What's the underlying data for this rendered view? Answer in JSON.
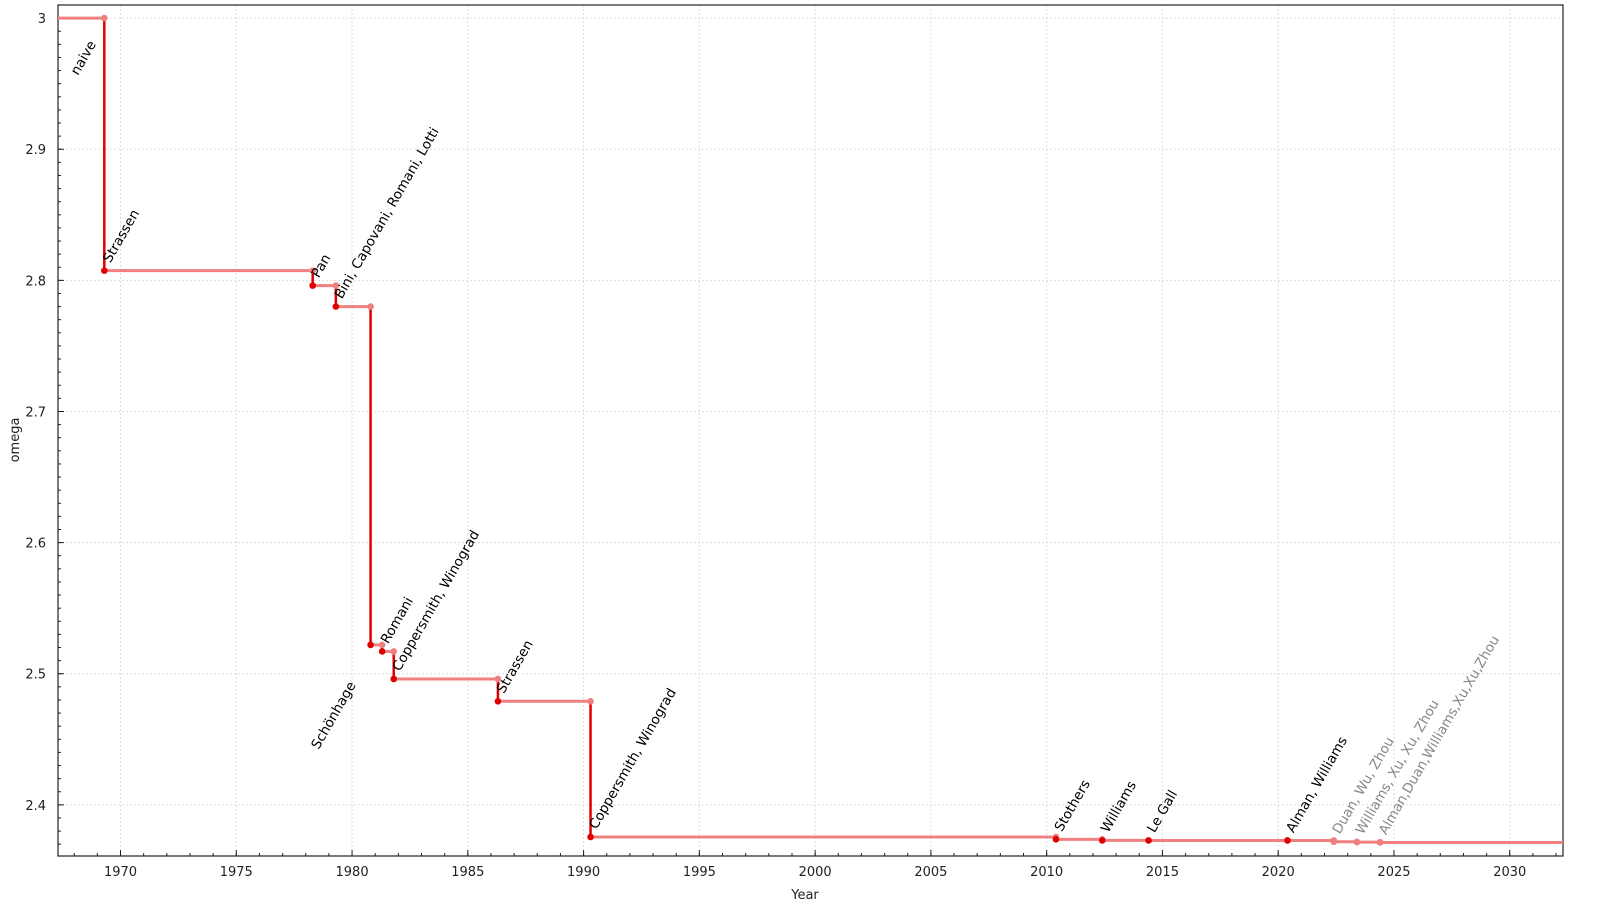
{
  "chart_data": {
    "type": "line",
    "style": "step",
    "title": "",
    "xlabel": "Year",
    "ylabel": "omega",
    "xlim": [
      1967.3,
      2032.3
    ],
    "ylim": [
      2.361,
      3.01
    ],
    "xticks": [
      1970,
      1975,
      1980,
      1985,
      1990,
      1995,
      2000,
      2005,
      2010,
      2015,
      2020,
      2025,
      2030
    ],
    "yticks": [
      2.4,
      2.5,
      2.6,
      2.7,
      2.8,
      2.9,
      3
    ],
    "ytick_labels": [
      "2.4",
      "2.5",
      "2.6",
      "2.7",
      "2.8",
      "2.9",
      "3"
    ],
    "grid": true,
    "colors": {
      "line": "#f08080",
      "step": "#e00000",
      "confirmed_label": "#000000",
      "unconfirmed_label": "#888888"
    },
    "points": [
      {
        "label": "naive",
        "year": null,
        "omega": 3.0,
        "confirmed": true
      },
      {
        "label": "Strassen",
        "year": 1969.3,
        "omega": 2.8074,
        "confirmed": true
      },
      {
        "label": "Pan",
        "year": 1978.3,
        "omega": 2.796,
        "confirmed": true
      },
      {
        "label": "Bini, Capovani, Romani, Lotti",
        "year": 1979.3,
        "omega": 2.78,
        "confirmed": true
      },
      {
        "label": "Schönhage",
        "year": 1980.8,
        "omega": 2.522,
        "confirmed": true
      },
      {
        "label": "Romani",
        "year": 1981.3,
        "omega": 2.517,
        "confirmed": true
      },
      {
        "label": "Coppersmith, Winograd",
        "year": 1981.8,
        "omega": 2.496,
        "confirmed": true
      },
      {
        "label": "Strassen",
        "year": 1986.3,
        "omega": 2.479,
        "confirmed": true
      },
      {
        "label": "Coppersmith, Winograd",
        "year": 1990.3,
        "omega": 2.3755,
        "confirmed": true
      },
      {
        "label": "Stothers",
        "year": 2010.4,
        "omega": 2.3737,
        "confirmed": true
      },
      {
        "label": "Williams",
        "year": 2012.4,
        "omega": 2.3729,
        "confirmed": true
      },
      {
        "label": "Le Gall",
        "year": 2014.4,
        "omega": 2.37286,
        "confirmed": true
      },
      {
        "label": "Alman, Williams",
        "year": 2020.4,
        "omega": 2.37286,
        "confirmed": true
      },
      {
        "label": "Duan, Wu, Zhou",
        "year": 2022.4,
        "omega": 2.37187,
        "confirmed": false
      },
      {
        "label": "Williams, Xu, Xu, Zhou",
        "year": 2023.4,
        "omega": 2.37155,
        "confirmed": false
      },
      {
        "label": "Alman,Duan,Williams,Xu,Xu,Zhou",
        "year": 2024.4,
        "omega": 2.37134,
        "confirmed": false
      }
    ]
  }
}
